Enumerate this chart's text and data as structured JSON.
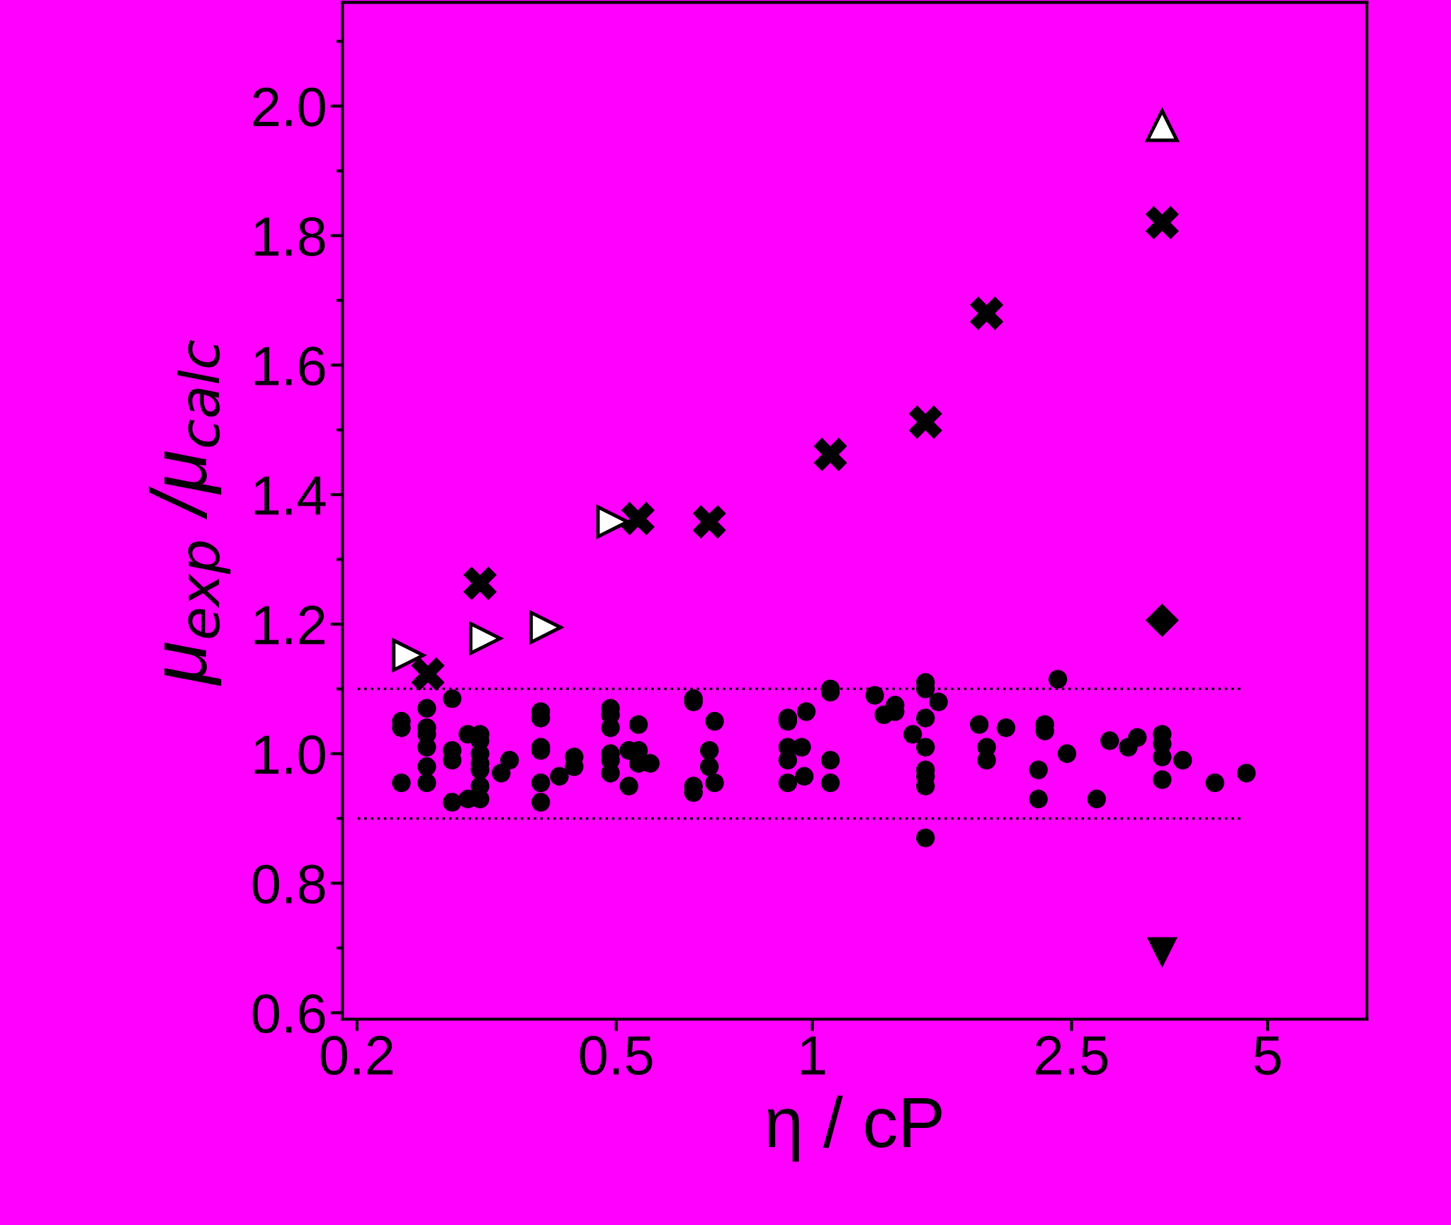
{
  "chart_data": {
    "type": "scatter",
    "xlabel": "η / cP",
    "ylabel": "μ$_{exp}$ /μ$_{calc}$",
    "log": "x",
    "xlim": [
      0.19,
      7.1
    ],
    "xticks": [
      0.2,
      0.5,
      1,
      2.5,
      5
    ],
    "ylim": [
      0.59,
      2.16
    ],
    "yticks": [
      {
        "value": 0.6,
        "label": "0.6"
      },
      {
        "value": 0.8,
        "label": "0.8"
      },
      {
        "value": 1.0,
        "label": "1.0"
      },
      {
        "value": 1.2,
        "label": "1.2"
      },
      {
        "value": 1.4,
        "label": "1.4"
      },
      {
        "value": 1.6,
        "label": "1.6"
      },
      {
        "value": 1.8,
        "label": "1.8"
      },
      {
        "value": 2.0,
        "label": "2.0"
      }
    ],
    "grid": false,
    "legend": false,
    "ref_lines": [
      {
        "axis": "y",
        "value": 1.1,
        "color": "#000000",
        "line_style": "dotted"
      },
      {
        "axis": "y",
        "value": 0.9,
        "color": "#000000",
        "line_style": "dotted"
      }
    ],
    "series": [
      {
        "color": "#000000",
        "marker": "circle",
        "x": [
          0.234,
          0.234,
          0.234,
          0.256,
          0.256,
          0.256,
          0.256,
          0.256,
          0.256,
          0.28,
          0.28,
          0.28,
          0.28,
          0.296,
          0.296,
          0.309,
          0.309,
          0.309,
          0.309,
          0.309,
          0.309,
          0.309,
          0.333,
          0.343,
          0.383,
          0.383,
          0.383,
          0.383,
          0.383,
          0.383,
          0.409,
          0.431,
          0.431,
          0.49,
          0.49,
          0.49,
          0.49,
          0.49,
          0.49,
          0.523,
          0.523,
          0.541,
          0.541,
          0.541,
          0.564,
          0.657,
          0.657,
          0.657,
          0.657,
          0.695,
          0.695,
          0.708,
          0.708,
          0.917,
          0.917,
          0.917,
          0.917,
          0.917,
          0.963,
          0.972,
          0.979,
          1.066,
          1.066,
          1.066,
          1.066,
          1.247,
          1.288,
          1.34,
          1.34,
          1.426,
          1.492,
          1.492,
          1.492,
          1.492,
          1.492,
          1.492,
          1.492,
          1.492,
          1.562,
          1.804,
          1.852,
          1.852,
          1.983,
          2.224,
          2.224,
          2.275,
          2.275,
          2.382,
          2.46,
          2.732,
          2.861,
          3.055,
          3.155,
          3.444,
          3.444,
          3.444,
          3.444,
          3.703,
          4.15,
          4.638
        ],
        "values": [
          1.05,
          1.04,
          0.955,
          1.07,
          1.04,
          1.03,
          1.01,
          0.98,
          0.955,
          1.085,
          1.005,
          0.99,
          0.925,
          1.03,
          0.93,
          1.03,
          1.02,
          1.0,
          0.985,
          0.975,
          0.95,
          0.93,
          0.97,
          0.99,
          1.065,
          1.055,
          1.01,
          1.005,
          0.955,
          0.925,
          0.965,
          0.995,
          0.98,
          1.07,
          1.06,
          1.04,
          1.0,
          0.99,
          0.97,
          1.005,
          0.95,
          1.045,
          1.005,
          0.985,
          0.985,
          1.085,
          1.08,
          0.95,
          0.94,
          1.005,
          0.98,
          1.05,
          0.955,
          1.055,
          1.05,
          1.01,
          0.99,
          0.955,
          1.01,
          0.965,
          1.065,
          1.1,
          1.095,
          0.99,
          0.955,
          1.09,
          1.06,
          1.075,
          1.065,
          1.03,
          1.11,
          1.1,
          1.055,
          1.01,
          0.975,
          0.965,
          0.95,
          0.87,
          1.08,
          1.045,
          1.01,
          0.99,
          1.04,
          0.975,
          0.93,
          1.045,
          1.035,
          1.115,
          1.0,
          0.93,
          1.02,
          1.01,
          1.025,
          1.03,
          1.015,
          0.995,
          0.96,
          0.99,
          0.955,
          0.97
        ]
      },
      {
        "color": "#000000",
        "marker": "cross",
        "x": [
          0.257,
          0.309,
          0.54,
          0.695,
          1.066,
          1.492,
          1.852,
          3.444
        ],
        "values": [
          1.123,
          1.263,
          1.363,
          1.358,
          1.462,
          1.512,
          1.68,
          1.82
        ]
      },
      {
        "color": "#ffffff",
        "marker": "triangle_right",
        "x": [
          0.24,
          0.315,
          0.39,
          0.494
        ],
        "values": [
          1.152,
          1.178,
          1.195,
          1.358
        ]
      },
      {
        "color": "#ffffff",
        "marker": "triangle",
        "x": [
          3.444
        ],
        "values": [
          1.97
        ]
      },
      {
        "color": "#000000",
        "marker": "diamond",
        "x": [
          3.444
        ],
        "values": [
          1.206
        ]
      },
      {
        "color": "#000000",
        "marker": "triangle_down",
        "x": [
          3.444
        ],
        "values": [
          0.694
        ]
      }
    ]
  }
}
